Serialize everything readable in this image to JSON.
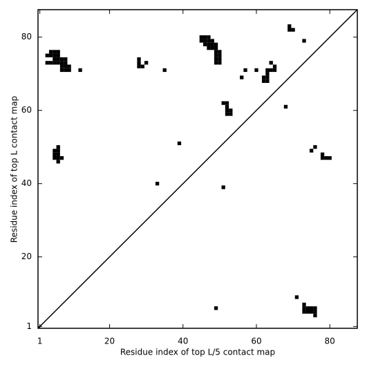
{
  "chart_data": {
    "type": "scatter",
    "xlabel": "Residue index of top L/5 contact map",
    "ylabel": "Residue index of top L contact map",
    "xlim": [
      0.5,
      87.5
    ],
    "ylim": [
      0.5,
      87.5
    ],
    "xticks": [
      1,
      20,
      40,
      60,
      80
    ],
    "yticks": [
      1,
      20,
      40,
      60,
      80
    ],
    "color": "#000000",
    "x": [
      4,
      5,
      6,
      3,
      4,
      5,
      6,
      5,
      6,
      7,
      8,
      3,
      4,
      5,
      6,
      7,
      8,
      7,
      8,
      9,
      7,
      8,
      9,
      12,
      28,
      28,
      30,
      28,
      29,
      35,
      45,
      46,
      47,
      45,
      46,
      47,
      48,
      46,
      47,
      48,
      49,
      47,
      48,
      49,
      49,
      50,
      49,
      50,
      49,
      50,
      49,
      50,
      57,
      56,
      60,
      64,
      65,
      63,
      64,
      65,
      63,
      62,
      63,
      62,
      63,
      69,
      69,
      70,
      73,
      68,
      51,
      52,
      52,
      52,
      53,
      52,
      53,
      39,
      33,
      51,
      6,
      5,
      6,
      5,
      6,
      5,
      6,
      7,
      6,
      75,
      76,
      78,
      78,
      79,
      80,
      49,
      71,
      73,
      73,
      74,
      75,
      76,
      73,
      74,
      75,
      76,
      76
    ],
    "y": [
      76,
      76,
      76,
      75,
      75,
      75,
      75,
      74,
      74,
      74,
      74,
      73,
      73,
      73,
      73,
      73,
      73,
      72,
      72,
      72,
      71,
      71,
      71,
      71,
      74,
      73,
      73,
      72,
      72,
      71,
      80,
      80,
      80,
      79,
      79,
      79,
      79,
      78,
      78,
      78,
      78,
      77,
      77,
      77,
      76,
      76,
      75,
      75,
      74,
      74,
      73,
      73,
      71,
      69,
      71,
      73,
      72,
      71,
      71,
      71,
      70,
      69,
      69,
      68,
      68,
      83,
      82,
      82,
      79,
      61,
      62,
      62,
      61,
      60,
      60,
      59,
      59,
      51,
      40,
      39,
      50,
      49,
      49,
      48,
      48,
      47,
      47,
      47,
      46,
      49,
      50,
      48,
      47,
      47,
      47,
      6,
      9,
      7,
      6,
      6,
      6,
      6,
      5,
      5,
      5,
      5,
      4
    ]
  }
}
